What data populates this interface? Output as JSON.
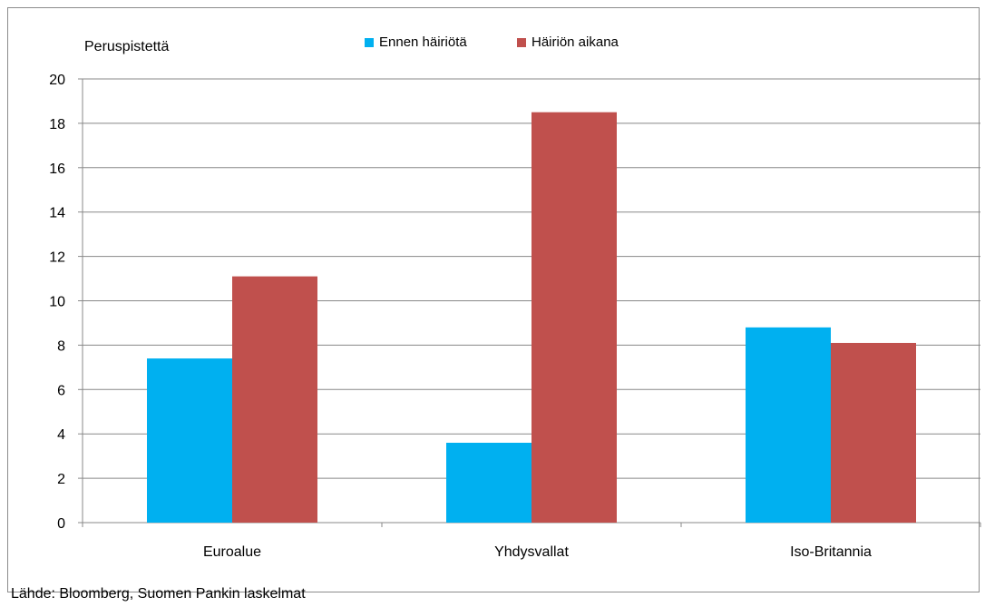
{
  "chart_data": {
    "type": "bar",
    "ylabel": "Peruspistettä",
    "categories": [
      "Euroalue",
      "Yhdysvallat",
      "Iso-Britannia"
    ],
    "series": [
      {
        "name": "Ennen häiriötä",
        "color": "#00b0f0",
        "values": [
          7.4,
          3.6,
          8.8
        ]
      },
      {
        "name": "Häiriön aikana",
        "color": "#c0504d",
        "values": [
          11.1,
          18.5,
          8.1
        ]
      }
    ],
    "ylim": [
      0,
      20
    ],
    "yticks": [
      0,
      2,
      4,
      6,
      8,
      10,
      12,
      14,
      16,
      18,
      20
    ],
    "grid": true,
    "legend_position": "top"
  },
  "source": "Lähde: Bloomberg, Suomen Pankin laskelmat"
}
